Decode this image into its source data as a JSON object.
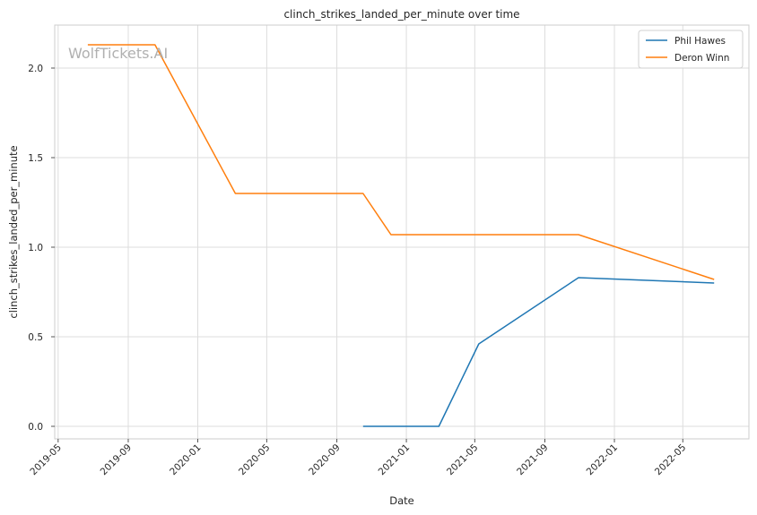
{
  "chart_data": {
    "type": "line",
    "title": "clinch_strikes_landed_per_minute over time",
    "xlabel": "Date",
    "ylabel": "clinch_strikes_landed_per_minute",
    "x_ticks": [
      "2019-05",
      "2019-09",
      "2020-01",
      "2020-05",
      "2020-09",
      "2021-01",
      "2021-05",
      "2021-09",
      "2022-01",
      "2022-05"
    ],
    "y_ticks": [
      "0.0",
      "0.5",
      "1.0",
      "1.5",
      "2.0"
    ],
    "xlim": [
      "2019-04-25",
      "2022-08-25"
    ],
    "ylim": [
      -0.07,
      2.24
    ],
    "grid": true,
    "legend_position": "top-right",
    "watermark": "WolfTickets.AI",
    "series": [
      {
        "name": "Phil Hawes",
        "color": "#1f77b4",
        "points": [
          {
            "x": "2020-10-17",
            "y": 0.0
          },
          {
            "x": "2021-02-27",
            "y": 0.0
          },
          {
            "x": "2021-05-08",
            "y": 0.46
          },
          {
            "x": "2021-10-30",
            "y": 0.83
          },
          {
            "x": "2022-06-25",
            "y": 0.8
          }
        ]
      },
      {
        "name": "Deron Winn",
        "color": "#ff7f0e",
        "points": [
          {
            "x": "2019-06-22",
            "y": 2.13
          },
          {
            "x": "2019-10-18",
            "y": 2.13
          },
          {
            "x": "2020-03-07",
            "y": 1.3
          },
          {
            "x": "2020-10-17",
            "y": 1.3
          },
          {
            "x": "2020-12-05",
            "y": 1.07
          },
          {
            "x": "2021-10-30",
            "y": 1.07
          },
          {
            "x": "2022-06-25",
            "y": 0.82
          }
        ]
      }
    ]
  }
}
